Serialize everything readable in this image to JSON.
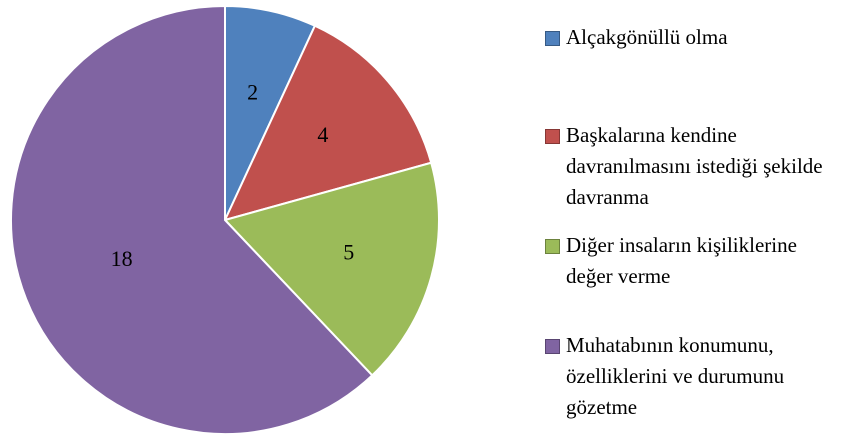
{
  "chart_data": {
    "type": "pie",
    "categories": [
      "Alçakgönüllü olma",
      "Başkalarına kendine davranılmasını istediği şekilde davranma",
      "Diğer insaların kişiliklerine değer verme",
      "Muhatabının konumunu, özelliklerini ve durumunu gözetme"
    ],
    "values": [
      2,
      4,
      5,
      18
    ],
    "colors": [
      "#4f81bd",
      "#c0504d",
      "#9bbb59",
      "#8064a2"
    ],
    "legend": "right"
  }
}
